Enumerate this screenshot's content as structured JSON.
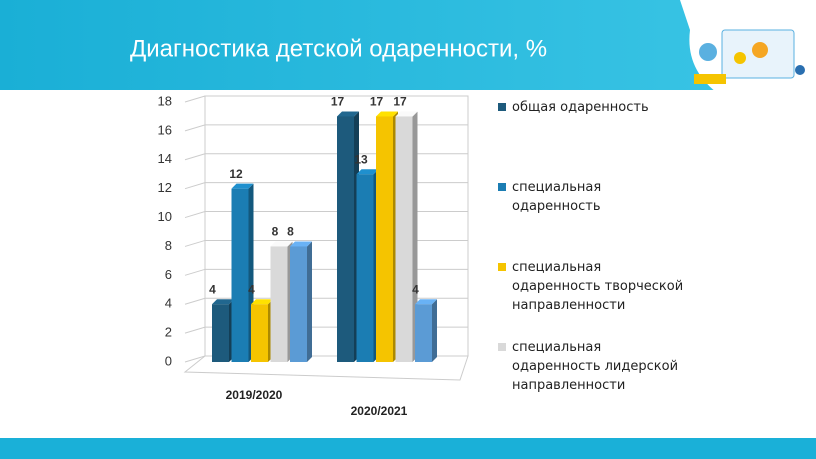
{
  "chart_data": {
    "type": "bar3d",
    "title": "Диагностика детской одаренности, %",
    "categories": [
      "2019/2020",
      "2020/2021"
    ],
    "series": [
      {
        "name": "общая одаренность",
        "color": "#1d5a7c",
        "values": [
          4,
          17
        ]
      },
      {
        "name": "специальная одаренность",
        "color": "#1b7db3",
        "values": [
          12,
          13
        ]
      },
      {
        "name": "специальная одаренность творческой направленности",
        "color": "#f5c400",
        "values": [
          4,
          17
        ]
      },
      {
        "name": "специальная одаренность лидерской направленности",
        "color": "#d9d9d9",
        "values": [
          8,
          17
        ]
      },
      {
        "color": "#5b9bd5",
        "values": [
          8,
          4
        ]
      }
    ],
    "ylim": [
      0,
      18
    ],
    "yticks": [
      0,
      2,
      4,
      6,
      8,
      10,
      12,
      14,
      16,
      18
    ],
    "grid": true,
    "legend": "right"
  }
}
